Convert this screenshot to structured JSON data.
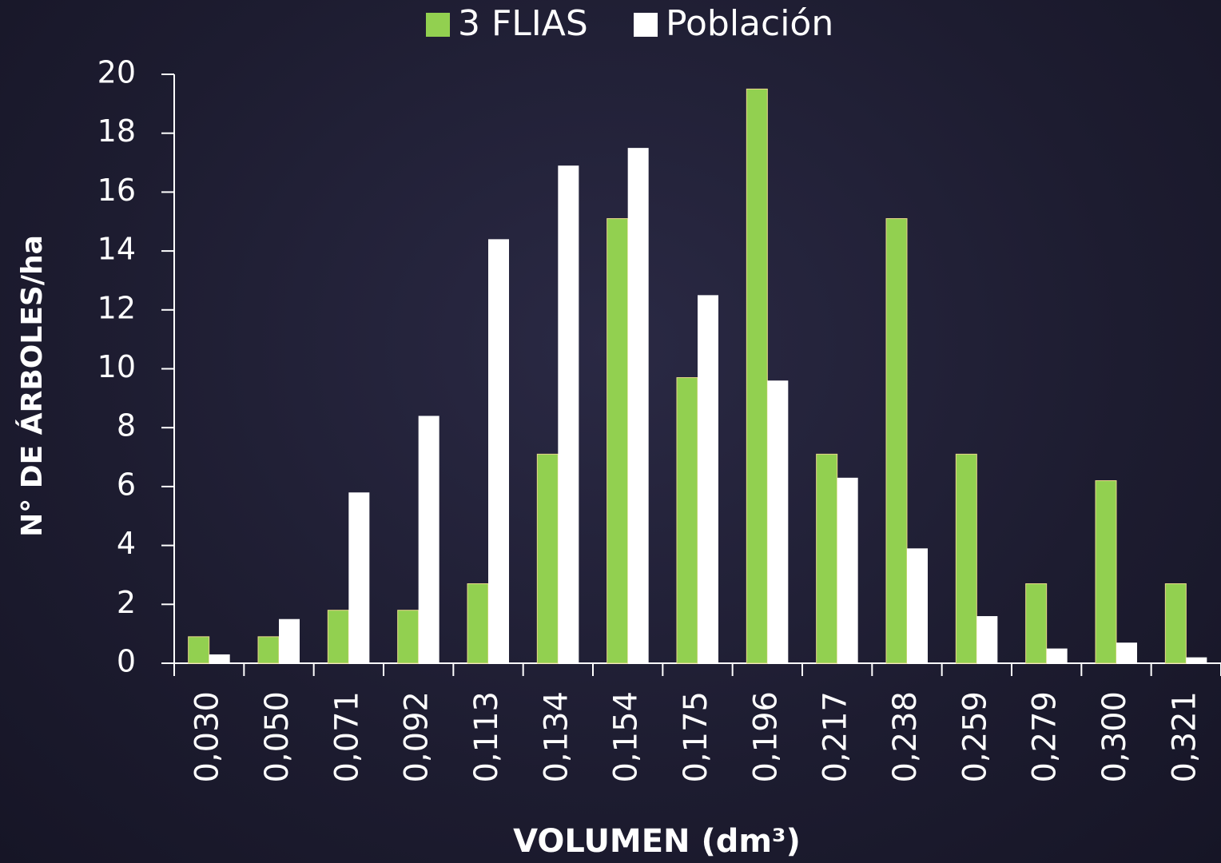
{
  "chart_data": {
    "type": "bar",
    "x_label": "VOLUMEN (dm³)",
    "y_label": "N° DE ÁRBOLES/ha",
    "categories": [
      "0,030",
      "0,050",
      "0,071",
      "0,092",
      "0,113",
      "0,134",
      "0,154",
      "0,175",
      "0,196",
      "0,217",
      "0,238",
      "0,259",
      "0,279",
      "0,300",
      "0,321"
    ],
    "series": [
      {
        "name": "3 FLIAS",
        "color": "#92d050",
        "values": [
          0.9,
          0.9,
          1.8,
          1.8,
          2.7,
          7.1,
          15.1,
          9.7,
          19.5,
          7.1,
          15.1,
          7.1,
          2.7,
          6.2,
          2.7
        ]
      },
      {
        "name": "Población",
        "color": "#ffffff",
        "values": [
          0.3,
          1.5,
          5.8,
          8.4,
          14.4,
          16.9,
          17.5,
          12.5,
          9.6,
          6.3,
          3.9,
          1.6,
          0.5,
          0.7,
          0.2
        ]
      }
    ],
    "ylim": [
      0,
      20
    ],
    "yticks": [
      0,
      2,
      4,
      6,
      8,
      10,
      12,
      14,
      16,
      18,
      20
    ],
    "legend": "top",
    "grid": false
  }
}
